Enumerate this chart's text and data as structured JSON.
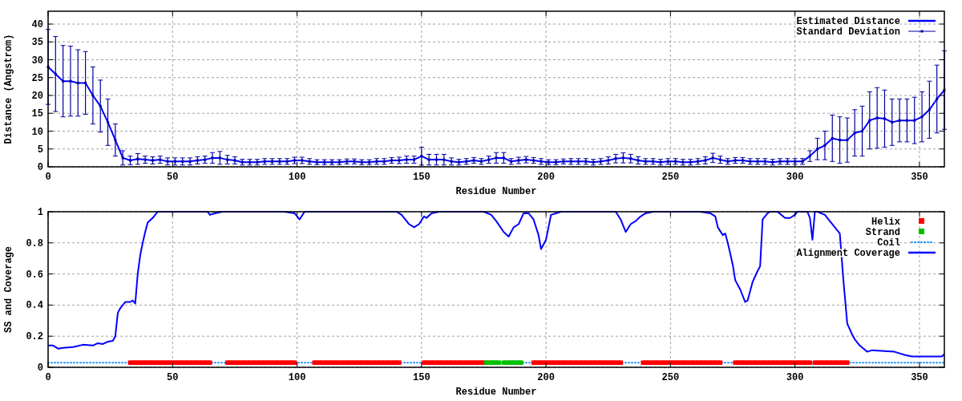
{
  "chart_data": [
    {
      "type": "line",
      "xlabel": "Residue Number",
      "ylabel": "Distance (Angstrom)",
      "xlim": [
        0,
        360
      ],
      "ylim": [
        0,
        43.6
      ],
      "xticks": [
        0,
        50,
        100,
        150,
        200,
        250,
        300,
        350
      ],
      "yticks": [
        0,
        5,
        10,
        15,
        20,
        25,
        30,
        35,
        40
      ],
      "grid": true,
      "legend": "top right",
      "x": [
        0,
        3,
        6,
        9,
        12,
        15,
        18,
        21,
        24,
        27,
        30,
        33,
        36,
        39,
        42,
        45,
        48,
        51,
        54,
        57,
        60,
        63,
        66,
        69,
        72,
        75,
        78,
        81,
        84,
        87,
        90,
        93,
        96,
        99,
        102,
        105,
        108,
        111,
        114,
        117,
        120,
        123,
        126,
        129,
        132,
        135,
        138,
        141,
        144,
        147,
        150,
        153,
        156,
        159,
        162,
        165,
        168,
        171,
        174,
        177,
        180,
        183,
        186,
        189,
        192,
        195,
        198,
        201,
        204,
        207,
        210,
        213,
        216,
        219,
        222,
        225,
        228,
        231,
        234,
        237,
        240,
        243,
        246,
        249,
        252,
        255,
        258,
        261,
        264,
        267,
        270,
        273,
        276,
        279,
        282,
        285,
        288,
        291,
        294,
        297,
        300,
        303,
        306,
        309,
        312,
        315,
        318,
        321,
        324,
        327,
        330,
        333,
        336,
        339,
        342,
        345,
        348,
        351,
        354,
        357,
        360
      ],
      "series": [
        {
          "name": "Estimated Distance",
          "color": "#0000ff",
          "values": [
            28,
            26,
            24,
            24,
            23.5,
            23.5,
            20,
            17,
            12.5,
            7.5,
            2.5,
            1.8,
            2.2,
            2,
            1.8,
            2,
            1.5,
            1.5,
            1.5,
            1.5,
            1.8,
            2,
            2.5,
            2.5,
            2,
            1.8,
            1.3,
            1.3,
            1.3,
            1.5,
            1.5,
            1.5,
            1.5,
            1.8,
            1.8,
            1.5,
            1.3,
            1.3,
            1.3,
            1.3,
            1.5,
            1.5,
            1.3,
            1.3,
            1.5,
            1.5,
            1.8,
            1.8,
            2,
            2,
            3,
            2,
            2,
            2,
            1.5,
            1.3,
            1.5,
            1.8,
            1.5,
            2,
            2.5,
            2.5,
            1.5,
            1.8,
            2,
            1.8,
            1.5,
            1.3,
            1.3,
            1.5,
            1.5,
            1.5,
            1.5,
            1.3,
            1.5,
            1.8,
            2.3,
            2.5,
            2.3,
            1.8,
            1.5,
            1.5,
            1.3,
            1.5,
            1.5,
            1.3,
            1.3,
            1.5,
            1.8,
            2.5,
            2,
            1.5,
            1.8,
            1.8,
            1.5,
            1.5,
            1.5,
            1.3,
            1.5,
            1.5,
            1.5,
            1.5,
            3,
            5,
            6,
            8,
            7.5,
            7.5,
            9.5,
            10,
            13,
            13.7,
            13.5,
            12.5,
            13,
            13,
            13,
            14,
            16,
            19,
            21.5
          ]
        },
        {
          "name": "Standard Deviation",
          "type": "scatter",
          "marker": "square",
          "color": "#0000a0",
          "values": [
            28,
            26,
            24,
            24,
            23.5,
            23.5,
            20,
            17,
            12.5,
            7.5,
            2.5,
            1.8,
            2.2,
            2,
            1.8,
            2,
            1.5,
            1.5,
            1.5,
            1.5,
            1.8,
            2,
            2.5,
            2.5,
            2,
            1.8,
            1.3,
            1.3,
            1.3,
            1.5,
            1.5,
            1.5,
            1.5,
            1.8,
            1.8,
            1.5,
            1.3,
            1.3,
            1.3,
            1.3,
            1.5,
            1.5,
            1.3,
            1.3,
            1.5,
            1.5,
            1.8,
            1.8,
            2,
            2,
            3,
            2,
            2,
            2,
            1.5,
            1.3,
            1.5,
            1.8,
            1.5,
            2,
            2.5,
            2.5,
            1.5,
            1.8,
            2,
            1.8,
            1.5,
            1.3,
            1.3,
            1.5,
            1.5,
            1.5,
            1.5,
            1.3,
            1.5,
            1.8,
            2.3,
            2.5,
            2.3,
            1.8,
            1.5,
            1.5,
            1.3,
            1.5,
            1.5,
            1.3,
            1.3,
            1.5,
            1.8,
            2.5,
            2,
            1.5,
            1.8,
            1.8,
            1.5,
            1.5,
            1.5,
            1.3,
            1.5,
            1.5,
            1.5,
            1.5,
            3,
            5,
            6,
            8,
            7.5,
            7.5,
            9.5,
            10,
            13,
            13.7,
            13.5,
            12.5,
            13,
            13,
            13,
            14,
            16,
            19,
            21.5
          ],
          "errors": [
            10.5,
            10.5,
            10,
            9.8,
            9.3,
            8.8,
            8,
            7.3,
            6.5,
            4.5,
            2,
            1.2,
            1.5,
            1,
            1,
            1,
            1,
            1,
            1,
            1,
            1,
            1,
            1.5,
            1.8,
            1.2,
            1,
            0.8,
            0.8,
            0.8,
            0.8,
            0.8,
            0.8,
            0.8,
            0.9,
            0.9,
            0.8,
            0.7,
            0.7,
            0.7,
            0.7,
            0.7,
            0.7,
            0.7,
            0.7,
            0.8,
            0.8,
            0.8,
            0.9,
            1,
            1,
            2.5,
            1.5,
            1.5,
            1.5,
            1,
            0.8,
            0.8,
            0.8,
            0.8,
            1,
            1.5,
            1.5,
            0.8,
            0.9,
            0.9,
            0.8,
            0.8,
            0.7,
            0.7,
            0.7,
            0.8,
            0.8,
            0.8,
            0.8,
            0.8,
            1,
            1.2,
            1.4,
            1.2,
            1,
            0.8,
            0.8,
            0.8,
            0.8,
            0.8,
            0.8,
            0.8,
            0.8,
            1,
            1.3,
            1,
            0.8,
            0.8,
            0.8,
            0.8,
            0.8,
            0.8,
            0.8,
            0.8,
            0.8,
            0.8,
            0.8,
            1.5,
            3,
            4,
            6.5,
            6.5,
            6.2,
            6.5,
            7,
            8,
            8.5,
            8,
            6.5,
            6,
            6,
            6.5,
            7,
            8,
            9.5,
            11
          ]
        }
      ]
    },
    {
      "type": "line",
      "xlabel": "Residue Number",
      "ylabel": "SS and Coverage",
      "xlim": [
        0,
        360
      ],
      "ylim": [
        0,
        1
      ],
      "xticks": [
        0,
        50,
        100,
        150,
        200,
        250,
        300,
        350
      ],
      "yticks": [
        0,
        0.2,
        0.4,
        0.6,
        0.8,
        1
      ],
      "grid": true,
      "legend": "top right",
      "series": [
        {
          "name": "Helix",
          "type": "scatter",
          "marker": "square",
          "color": "#ff0000",
          "x": [
            33,
            34,
            35,
            36,
            37,
            38,
            39,
            40,
            41,
            42,
            43,
            44,
            45,
            46,
            47,
            48,
            49,
            50,
            51,
            52,
            53,
            54,
            55,
            56,
            57,
            58,
            59,
            60,
            61,
            62,
            63,
            64,
            65,
            72,
            73,
            74,
            75,
            76,
            77,
            78,
            79,
            80,
            81,
            82,
            83,
            84,
            85,
            86,
            87,
            88,
            89,
            90,
            91,
            92,
            93,
            94,
            95,
            96,
            97,
            98,
            99,
            107,
            108,
            109,
            110,
            111,
            112,
            113,
            114,
            115,
            116,
            117,
            118,
            119,
            120,
            121,
            122,
            123,
            124,
            125,
            126,
            127,
            128,
            129,
            130,
            131,
            132,
            133,
            134,
            135,
            136,
            137,
            138,
            139,
            140,
            141,
            151,
            152,
            153,
            154,
            155,
            156,
            157,
            158,
            159,
            160,
            161,
            162,
            163,
            164,
            165,
            166,
            167,
            168,
            169,
            170,
            171,
            172,
            173,
            174,
            175,
            195,
            196,
            197,
            198,
            199,
            200,
            201,
            202,
            203,
            204,
            205,
            206,
            207,
            208,
            209,
            210,
            211,
            212,
            213,
            214,
            215,
            216,
            217,
            218,
            219,
            220,
            221,
            222,
            223,
            224,
            225,
            226,
            227,
            228,
            229,
            230,
            239,
            240,
            241,
            242,
            243,
            244,
            245,
            246,
            247,
            248,
            249,
            250,
            251,
            252,
            253,
            254,
            255,
            256,
            257,
            258,
            259,
            260,
            261,
            262,
            263,
            264,
            265,
            266,
            267,
            268,
            269,
            270,
            276,
            277,
            278,
            279,
            280,
            281,
            282,
            283,
            284,
            285,
            286,
            287,
            288,
            289,
            290,
            291,
            292,
            293,
            294,
            295,
            296,
            297,
            298,
            299,
            300,
            301,
            302,
            303,
            304,
            305,
            306,
            308,
            309,
            310,
            311,
            312,
            313,
            314,
            315,
            316,
            317,
            318,
            319,
            320,
            321
          ],
          "values": [
            0.03,
            0.03,
            0.03,
            0.03,
            0.03,
            0.03,
            0.03,
            0.03,
            0.03,
            0.03,
            0.03,
            0.03,
            0.03,
            0.03,
            0.03,
            0.03,
            0.03,
            0.03,
            0.03,
            0.03,
            0.03,
            0.03,
            0.03,
            0.03,
            0.03,
            0.03,
            0.03,
            0.03,
            0.03,
            0.03,
            0.03,
            0.03,
            0.03,
            0.03,
            0.03,
            0.03,
            0.03,
            0.03,
            0.03,
            0.03,
            0.03,
            0.03,
            0.03,
            0.03,
            0.03,
            0.03,
            0.03,
            0.03,
            0.03,
            0.03,
            0.03,
            0.03,
            0.03,
            0.03,
            0.03,
            0.03,
            0.03,
            0.03,
            0.03,
            0.03,
            0.03,
            0.03,
            0.03,
            0.03,
            0.03,
            0.03,
            0.03,
            0.03,
            0.03,
            0.03,
            0.03,
            0.03,
            0.03,
            0.03,
            0.03,
            0.03,
            0.03,
            0.03,
            0.03,
            0.03,
            0.03,
            0.03,
            0.03,
            0.03,
            0.03,
            0.03,
            0.03,
            0.03,
            0.03,
            0.03,
            0.03,
            0.03,
            0.03,
            0.03,
            0.03,
            0.03,
            0.03,
            0.03,
            0.03,
            0.03,
            0.03,
            0.03,
            0.03,
            0.03,
            0.03,
            0.03,
            0.03,
            0.03,
            0.03,
            0.03,
            0.03,
            0.03,
            0.03,
            0.03,
            0.03,
            0.03,
            0.03,
            0.03,
            0.03,
            0.03,
            0.03,
            0.03,
            0.03,
            0.03,
            0.03,
            0.03,
            0.03,
            0.03,
            0.03,
            0.03,
            0.03,
            0.03,
            0.03,
            0.03,
            0.03,
            0.03,
            0.03,
            0.03,
            0.03,
            0.03,
            0.03,
            0.03,
            0.03,
            0.03,
            0.03,
            0.03,
            0.03,
            0.03,
            0.03,
            0.03,
            0.03,
            0.03,
            0.03,
            0.03,
            0.03,
            0.03,
            0.03,
            0.03,
            0.03,
            0.03,
            0.03,
            0.03,
            0.03,
            0.03,
            0.03,
            0.03,
            0.03,
            0.03,
            0.03,
            0.03,
            0.03,
            0.03,
            0.03,
            0.03,
            0.03,
            0.03,
            0.03,
            0.03,
            0.03,
            0.03,
            0.03,
            0.03,
            0.03,
            0.03,
            0.03,
            0.03,
            0.03,
            0.03,
            0.03,
            0.03,
            0.03,
            0.03,
            0.03,
            0.03,
            0.03,
            0.03,
            0.03,
            0.03,
            0.03,
            0.03,
            0.03,
            0.03,
            0.03,
            0.03,
            0.03,
            0.03,
            0.03,
            0.03,
            0.03,
            0.03,
            0.03,
            0.03,
            0.03,
            0.03,
            0.03,
            0.03,
            0.03,
            0.03,
            0.03,
            0.03,
            0.03,
            0.03,
            0.03,
            0.03,
            0.03,
            0.03,
            0.03,
            0.03,
            0.03,
            0.03,
            0.03,
            0.03,
            0.03,
            0.03
          ]
        },
        {
          "name": "Strand",
          "type": "scatter",
          "marker": "square",
          "color": "#00c000",
          "x": [
            176,
            177,
            178,
            179,
            180,
            181,
            183,
            184,
            185,
            186,
            187,
            188,
            189,
            190
          ],
          "values": [
            0.03,
            0.03,
            0.03,
            0.03,
            0.03,
            0.03,
            0.03,
            0.03,
            0.03,
            0.03,
            0.03,
            0.03,
            0.03,
            0.03
          ]
        },
        {
          "name": "Coil",
          "line_style": "dotted",
          "color": "#1e90ff",
          "x": [
            0,
            360
          ],
          "values": [
            0.03,
            0.03
          ]
        },
        {
          "name": "Alignment Coverage",
          "color": "#0000ff",
          "x": [
            0,
            2,
            4,
            6,
            10,
            14,
            18,
            20,
            22,
            24,
            26,
            27,
            28,
            29,
            30,
            31,
            33,
            34,
            35,
            36,
            37,
            38,
            39,
            40,
            42,
            44,
            64,
            65,
            67,
            70,
            95,
            99,
            101,
            103,
            140,
            142,
            145,
            147,
            149,
            151,
            152,
            154,
            157,
            175,
            178,
            180,
            183,
            185,
            187,
            189,
            191,
            193,
            195,
            197,
            198,
            200,
            202,
            204,
            206,
            228,
            230,
            232,
            234,
            236,
            238,
            240,
            243,
            262,
            266,
            268,
            269,
            271,
            272,
            273,
            275,
            276,
            278,
            280,
            281,
            283,
            285,
            286,
            287,
            289,
            290,
            293,
            296,
            298,
            300,
            301,
            305,
            306,
            307,
            308,
            309,
            312,
            314,
            316,
            318,
            319.5,
            321,
            323,
            324,
            326,
            329,
            331,
            336,
            340,
            344,
            347,
            359,
            360
          ],
          "values": [
            0.14,
            0.14,
            0.12,
            0.125,
            0.13,
            0.145,
            0.14,
            0.155,
            0.15,
            0.165,
            0.17,
            0.2,
            0.35,
            0.38,
            0.4,
            0.42,
            0.42,
            0.43,
            0.41,
            0.6,
            0.72,
            0.8,
            0.87,
            0.93,
            0.96,
            1,
            1,
            0.98,
            0.99,
            1,
            1,
            0.99,
            0.95,
            1,
            1,
            0.98,
            0.92,
            0.9,
            0.92,
            0.97,
            0.96,
            0.99,
            1,
            1,
            0.98,
            0.94,
            0.87,
            0.84,
            0.9,
            0.92,
            0.99,
            0.99,
            0.95,
            0.85,
            0.76,
            0.82,
            0.98,
            0.99,
            1,
            1,
            0.95,
            0.87,
            0.92,
            0.94,
            0.97,
            0.99,
            1,
            1,
            0.99,
            0.97,
            0.9,
            0.85,
            0.86,
            0.8,
            0.66,
            0.56,
            0.5,
            0.42,
            0.43,
            0.55,
            0.62,
            0.65,
            0.95,
            0.99,
            1,
            1,
            0.96,
            0.96,
            0.98,
            1,
            1,
            0.96,
            0.82,
            1,
            1,
            0.98,
            0.94,
            0.9,
            0.86,
            0.55,
            0.28,
            0.21,
            0.18,
            0.14,
            0.1,
            0.11,
            0.105,
            0.1,
            0.08,
            0.07,
            0.07,
            0.085
          ]
        }
      ]
    }
  ]
}
